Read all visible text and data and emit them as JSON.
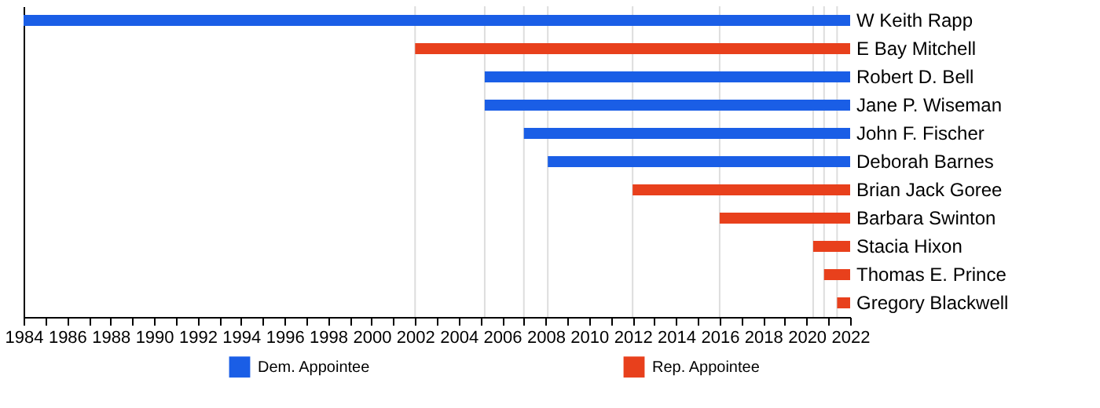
{
  "chart_data": {
    "type": "bar",
    "orientation": "horizontal",
    "categories": [
      "W Keith Rapp",
      "E Bay Mitchell",
      "Robert D. Bell",
      "Jane P. Wiseman",
      "John F. Fischer",
      "Deborah Barnes",
      "Brian Jack Goree",
      "Barbara Swinton",
      "Stacia Hixon",
      "Thomas E. Prince",
      "Gregory Blackwell"
    ],
    "series": [
      {
        "name": "Dem. Appointee",
        "color": "#1a5ee6",
        "base": [
          1984,
          null,
          2005.2,
          2005.2,
          2007,
          2008.1,
          null,
          null,
          null,
          null,
          null
        ],
        "values": [
          38,
          null,
          16.8,
          16.8,
          15,
          13.9,
          null,
          null,
          null,
          null,
          null
        ]
      },
      {
        "name": "Rep. Appointee",
        "color": "#e8401c",
        "base": [
          null,
          2002,
          null,
          null,
          null,
          null,
          2012,
          2016,
          2020.3,
          2020.8,
          2021.4
        ],
        "values": [
          null,
          20,
          null,
          null,
          null,
          null,
          10,
          6,
          1.7,
          1.2,
          0.6
        ]
      }
    ],
    "xlim": [
      1984,
      2022
    ],
    "xticks": [
      1984,
      {
        "value": 1985,
        "label": null
      },
      1986,
      {
        "value": 1987,
        "label": null
      },
      1988,
      {
        "value": 1989,
        "label": null
      },
      1990,
      {
        "value": 1991,
        "label": null
      },
      1992,
      {
        "value": 1993,
        "label": null
      },
      1994,
      {
        "value": 1995,
        "label": null
      },
      1996,
      {
        "value": 1997,
        "label": null
      },
      1998,
      {
        "value": 1999,
        "label": null
      },
      2000,
      {
        "value": 2001,
        "label": null
      },
      2002,
      {
        "value": 2003,
        "label": null
      },
      2004,
      {
        "value": 2005,
        "label": null
      },
      2006,
      {
        "value": 2007,
        "label": null
      },
      2008,
      {
        "value": 2009,
        "label": null
      },
      2010,
      {
        "value": 2011,
        "label": null
      },
      2012,
      {
        "value": 2013,
        "label": null
      },
      2014,
      {
        "value": 2015,
        "label": null
      },
      2016,
      {
        "value": 2017,
        "label": null
      },
      2018,
      {
        "value": 2019,
        "label": null
      },
      2020,
      {
        "value": 2021,
        "label": null
      },
      2022
    ],
    "ref_lines": [
      {
        "axis": "x",
        "value": 2002,
        "color": "#dddddd"
      },
      {
        "axis": "x",
        "value": 2005.2,
        "color": "#dddddd"
      },
      {
        "axis": "x",
        "value": 2007,
        "color": "#dddddd"
      },
      {
        "axis": "x",
        "value": 2008.1,
        "color": "#dddddd"
      },
      {
        "axis": "x",
        "value": 2012,
        "color": "#dddddd"
      },
      {
        "axis": "x",
        "value": 2016,
        "color": "#dddddd"
      },
      {
        "axis": "x",
        "value": 2020.3,
        "color": "#dddddd"
      },
      {
        "axis": "x",
        "value": 2020.8,
        "color": "#dddddd"
      },
      {
        "axis": "x",
        "value": 2021.4,
        "color": "#dddddd"
      }
    ],
    "legend": "bottom",
    "grid": false
  }
}
